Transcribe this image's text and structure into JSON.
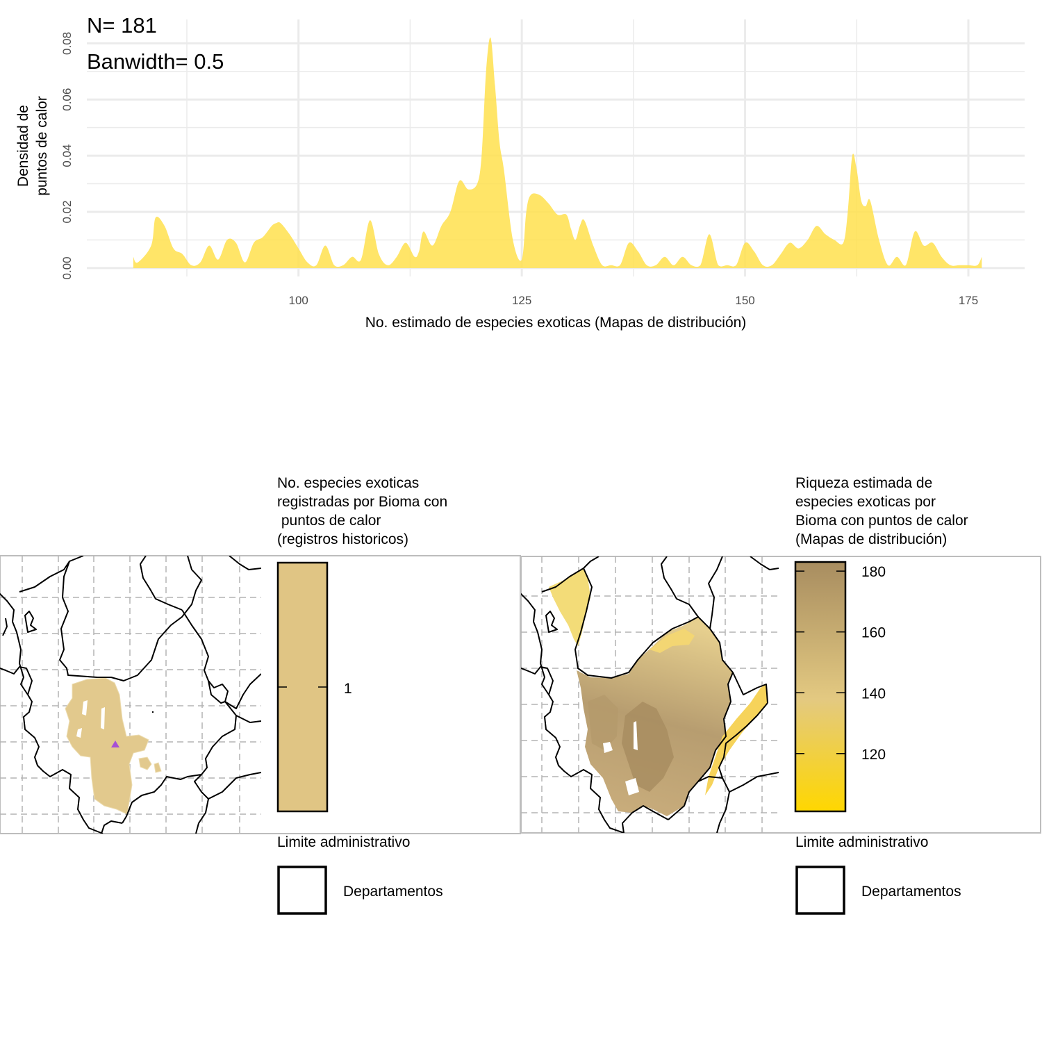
{
  "chart_data": [
    {
      "type": "area",
      "annotations": [
        "N= 181",
        "Banwidth= 0.5"
      ],
      "xlabel": "No. estimado de especies exoticas (Mapas de distribución)",
      "ylabel_lines": [
        "Densidad de",
        "puntos de calor"
      ],
      "xlim": [
        76.3,
        181.3
      ],
      "ylim": [
        -0.003,
        0.0885
      ],
      "x_ticks": [
        100,
        125,
        150,
        175
      ],
      "x_tick_labels": [
        "100",
        "125",
        "150",
        "175"
      ],
      "y_ticks": [
        0,
        0.02,
        0.04,
        0.06,
        0.08
      ],
      "y_tick_labels": [
        "0.00",
        "0.02",
        "0.04",
        "0.06",
        "0.08"
      ],
      "grid": true,
      "fill_color": "#ffe14d",
      "x": [
        81.5,
        82.0,
        83.5,
        84.0,
        85.0,
        86.0,
        87.0,
        88.0,
        89.0,
        90.0,
        91.0,
        92.0,
        93.0,
        94.0,
        95.0,
        96.0,
        97.0,
        97.5,
        98.0,
        99.0,
        100.0,
        101.0,
        102.0,
        103.0,
        104.0,
        105.0,
        106.0,
        107.0,
        108.0,
        109.0,
        110.0,
        111.0,
        112.0,
        113.0,
        113.5,
        114.0,
        115.0,
        116.0,
        117.0,
        118.0,
        119.0,
        120.0,
        120.5,
        121.0,
        121.5,
        122.0,
        122.5,
        123.0,
        124.0,
        125.0,
        125.5,
        126.0,
        127.0,
        128.0,
        129.0,
        130.0,
        130.5,
        131.0,
        131.5,
        132.0,
        133.0,
        134.0,
        135.0,
        136.0,
        137.0,
        138.0,
        139.0,
        140.0,
        141.0,
        142.0,
        143.0,
        144.0,
        145.0,
        146.0,
        147.0,
        148.0,
        149.0,
        150.0,
        151.0,
        152.0,
        153.0,
        154.0,
        155.0,
        156.0,
        157.0,
        158.0,
        159.0,
        160.0,
        161.0,
        161.5,
        162.0,
        162.5,
        163.0,
        163.5,
        164.0,
        165.0,
        166.0,
        167.0,
        168.0,
        169.0,
        170.0,
        171.0,
        172.0,
        173.0,
        174.0,
        175.0,
        176.0,
        176.5
      ],
      "y": [
        0.004,
        0.002,
        0.008,
        0.018,
        0.015,
        0.007,
        0.005,
        0.001,
        0.002,
        0.008,
        0.003,
        0.01,
        0.009,
        0.002,
        0.009,
        0.011,
        0.015,
        0.016,
        0.016,
        0.012,
        0.007,
        0.002,
        0.001,
        0.008,
        0.001,
        0.001,
        0.004,
        0.003,
        0.017,
        0.005,
        0.001,
        0.004,
        0.009,
        0.004,
        0.006,
        0.013,
        0.008,
        0.015,
        0.02,
        0.031,
        0.028,
        0.03,
        0.04,
        0.07,
        0.082,
        0.065,
        0.045,
        0.035,
        0.01,
        0.003,
        0.02,
        0.026,
        0.026,
        0.023,
        0.019,
        0.019,
        0.014,
        0.01,
        0.015,
        0.017,
        0.008,
        0.001,
        0.001,
        0.001,
        0.009,
        0.006,
        0.001,
        0.001,
        0.004,
        0.001,
        0.004,
        0.001,
        0.001,
        0.012,
        0.001,
        0.001,
        0.001,
        0.009,
        0.006,
        0.001,
        0.001,
        0.005,
        0.009,
        0.007,
        0.01,
        0.015,
        0.012,
        0.01,
        0.009,
        0.02,
        0.04,
        0.035,
        0.024,
        0.022,
        0.024,
        0.01,
        0.001,
        0.004,
        0.001,
        0.013,
        0.008,
        0.009,
        0.004,
        0.001,
        0.001,
        0.001,
        0.001,
        0.004
      ]
    },
    {
      "type": "heatmap",
      "legend_title_lines": [
        "No. especies exoticas",
        "registradas por Bioma con",
        " puntos de calor",
        "(registros historicos)"
      ],
      "legend_ticks": [
        1
      ],
      "legend_tick_labels": [
        "1"
      ],
      "legend_color": "#e0c584",
      "fill_color": "#e0c98c",
      "marker_color": "#a64fd6",
      "boundary_legend_title": "Limite administrativo",
      "boundary_legend_label": "Departamentos"
    },
    {
      "type": "heatmap",
      "legend_title_lines": [
        "Riqueza estimada de",
        "especies exoticas por",
        "Bioma con puntos de calor",
        "(Mapas de distribución)"
      ],
      "legend_range": [
        101,
        183
      ],
      "legend_ticks": [
        120,
        140,
        160,
        180
      ],
      "legend_tick_labels": [
        "120",
        "140",
        "160",
        "180"
      ],
      "color_low": "#ffd700",
      "color_mid": "#e3c981",
      "color_high": "#a88d60",
      "boundary_legend_title": "Limite administrativo",
      "boundary_legend_label": "Departamentos"
    }
  ]
}
